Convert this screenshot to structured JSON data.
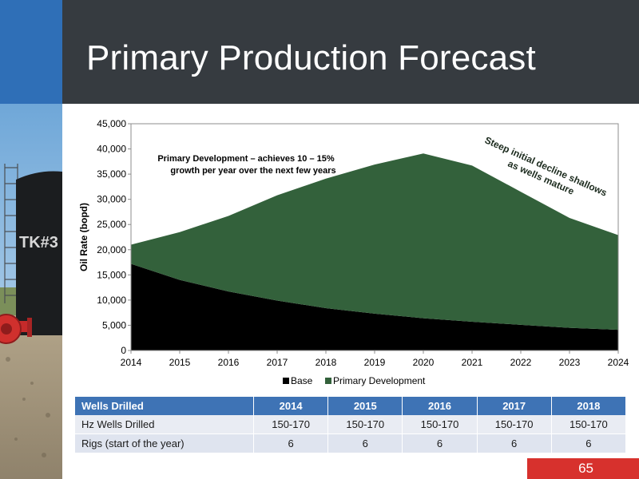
{
  "slide": {
    "title": "Primary Production Forecast",
    "page_number": "65",
    "tank_label": "TK#3"
  },
  "colors": {
    "header_dark": "#363b40",
    "header_blue": "#2f6fb7",
    "base_series": "#000000",
    "primary_series": "#33613b",
    "table_header": "#3e73b5",
    "page_badge": "#d7312d"
  },
  "chart_data": {
    "type": "area",
    "stacked": true,
    "x": [
      2014,
      2015,
      2016,
      2017,
      2018,
      2019,
      2020,
      2021,
      2022,
      2023,
      2024
    ],
    "series": [
      {
        "name": "Base",
        "color": "#000000",
        "values": [
          17200,
          14000,
          11700,
          9900,
          8400,
          7300,
          6400,
          5700,
          5100,
          4500,
          4100
        ]
      },
      {
        "name": "Primary Development",
        "color": "#33613b",
        "values": [
          3800,
          9500,
          15000,
          20900,
          25700,
          29600,
          32700,
          31000,
          26400,
          21800,
          18800
        ]
      }
    ],
    "xlim": [
      2014,
      2024
    ],
    "ylim": [
      0,
      45000
    ],
    "yticks": [
      "0",
      "5,000",
      "10,000",
      "15,000",
      "20,000",
      "25,000",
      "30,000",
      "35,000",
      "40,000",
      "45,000"
    ],
    "xticks": [
      "2014",
      "2015",
      "2016",
      "2017",
      "2018",
      "2019",
      "2020",
      "2021",
      "2022",
      "2023",
      "2024"
    ],
    "ylabel": "Oil Rate (bopd)",
    "xlabel": "",
    "grid": false,
    "legend": {
      "position": "bottom",
      "entries": [
        "Base",
        "Primary Development"
      ]
    },
    "annotations": [
      {
        "line1": "Primary Development  – achieves 10 – 15%",
        "line2": "growth per year over the next few years"
      },
      {
        "line1": "Steep initial decline shallows",
        "line2": "as wells mature"
      }
    ]
  },
  "table": {
    "header": [
      "Wells Drilled",
      "2014",
      "2015",
      "2016",
      "2017",
      "2018"
    ],
    "rows": [
      [
        "Hz Wells Drilled",
        "150-170",
        "150-170",
        "150-170",
        "150-170",
        "150-170"
      ],
      [
        "Rigs (start of the year)",
        "6",
        "6",
        "6",
        "6",
        "6"
      ]
    ]
  }
}
